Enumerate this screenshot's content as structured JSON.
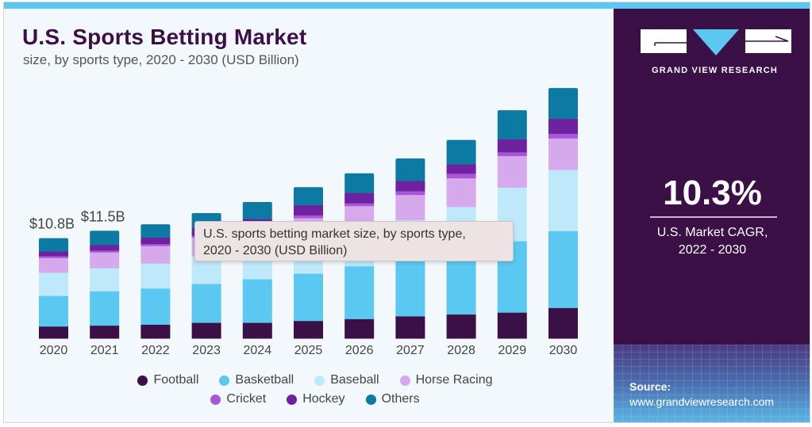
{
  "header": {
    "title": "U.S. Sports Betting Market",
    "subtitle": "size, by sports type, 2020 - 2030 (USD Billion)"
  },
  "brand": {
    "name": "GRAND VIEW RESEARCH",
    "logo_icon": "gvr-logo-icon"
  },
  "highlight": {
    "cagr": "10.3%",
    "label_line1": "U.S. Market CAGR,",
    "label_line2": "2022 - 2030"
  },
  "source": {
    "label": "Source:",
    "url": "www.grandviewresearch.com"
  },
  "tooltip": {
    "line1": "U.S. sports betting market size, by sports type,",
    "line2": "2020 - 2030 (USD Billion)"
  },
  "colors": {
    "accent_bar": "#5bc8f2",
    "brand_purple": "#3a1047"
  },
  "chart_data": {
    "type": "bar",
    "stacked": true,
    "title": "U.S. Sports Betting Market",
    "subtitle": "size, by sports type, 2020 - 2030 (USD Billion)",
    "xlabel": "",
    "ylabel": "USD Billion",
    "grid": false,
    "legend_position": "bottom",
    "categories": [
      "2020",
      "2021",
      "2022",
      "2023",
      "2024",
      "2025",
      "2026",
      "2027",
      "2028",
      "2029",
      "2030"
    ],
    "total_labels": [
      {
        "category": "2020",
        "text": "$10.8B"
      },
      {
        "category": "2021",
        "text": "$11.5B"
      }
    ],
    "series": [
      {
        "name": "Football",
        "color": "#3a1047",
        "values": [
          1.3,
          1.4,
          1.5,
          1.7,
          1.7,
          1.9,
          2.1,
          2.4,
          2.6,
          2.8,
          3.3
        ]
      },
      {
        "name": "Basketball",
        "color": "#5bc8f2",
        "values": [
          3.3,
          3.7,
          3.9,
          4.2,
          4.7,
          5.1,
          5.7,
          6.1,
          6.8,
          7.7,
          8.3
        ]
      },
      {
        "name": "Baseball",
        "color": "#bde9fa",
        "values": [
          2.5,
          2.5,
          2.7,
          3.0,
          3.2,
          3.6,
          3.9,
          4.3,
          4.8,
          5.8,
          6.6
        ]
      },
      {
        "name": "Horse Racing",
        "color": "#d5a9ec",
        "values": [
          1.6,
          1.7,
          1.9,
          2.0,
          2.2,
          2.4,
          2.6,
          2.7,
          3.1,
          3.4,
          3.4
        ]
      },
      {
        "name": "Cricket",
        "color": "#a855d8",
        "values": [
          0.2,
          0.2,
          0.2,
          0.2,
          0.2,
          0.3,
          0.3,
          0.4,
          0.5,
          0.4,
          0.5
        ]
      },
      {
        "name": "Hockey",
        "color": "#6f22a0",
        "values": [
          0.5,
          0.6,
          0.7,
          0.8,
          0.9,
          1.1,
          1.1,
          1.1,
          1.0,
          1.4,
          1.6
        ]
      },
      {
        "name": "Others",
        "color": "#0d7aa3",
        "values": [
          1.4,
          1.5,
          1.4,
          1.6,
          1.8,
          1.9,
          2.1,
          2.4,
          2.6,
          3.1,
          3.3
        ]
      }
    ],
    "ylim": [
      0,
      28
    ]
  }
}
